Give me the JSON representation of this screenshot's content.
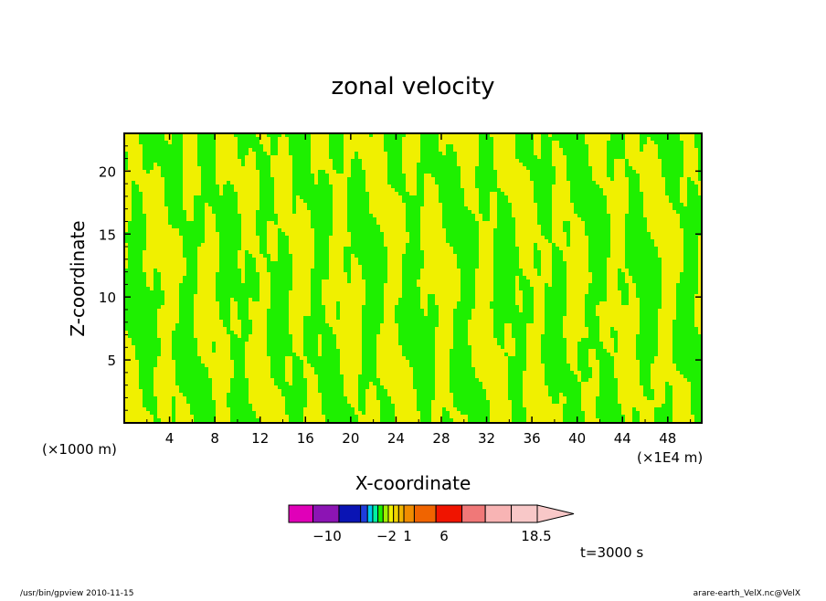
{
  "chart_data": {
    "type": "heatmap",
    "title": "zonal velocity",
    "xlabel": "X-coordinate",
    "ylabel": "Z-coordinate",
    "x_units": "(×1E4 m)",
    "y_units": "(×1000 m)",
    "xlim": [
      0,
      51
    ],
    "ylim": [
      0,
      23
    ],
    "x_ticks": [
      "4",
      "8",
      "12",
      "16",
      "20",
      "24",
      "28",
      "32",
      "36",
      "40",
      "44",
      "48"
    ],
    "y_ticks": [
      "5",
      "10",
      "15",
      "20"
    ],
    "time_label": "t=3000 s",
    "colorbar": {
      "levels": [
        -14,
        -12,
        -10,
        -8,
        -6,
        -5,
        -4,
        -3,
        -2,
        -1,
        0,
        1,
        2,
        3,
        4,
        6,
        8,
        10,
        12,
        14,
        18.5
      ],
      "colors": [
        "#e000b8",
        "#8c14b4",
        "#0a14b4",
        "#1450e6",
        "#00c8f0",
        "#00f0a0",
        "#1ef000",
        "#a0f000",
        "#f0f000",
        "#f0d200",
        "#f0aa00",
        "#f0aa00",
        "#f08c00",
        "#f06400",
        "#f01400",
        "#f01400",
        "#f07878",
        "#f07878",
        "#f8b4b4",
        "#f8b4b4"
      ],
      "shown_colors": [
        "#e000b8",
        "#8c14b4",
        "#0a14b4",
        "#1e3cdc",
        "#00c8f0",
        "#00f0a0",
        "#1ef000",
        "#a0f000",
        "#f0f000",
        "#f0d200",
        "#f0b400",
        "#f08c00",
        "#f06400",
        "#f01400",
        "#f07878",
        "#f8b4b4",
        "#f8c8c8"
      ],
      "tick_labels": [
        "-10",
        "-2",
        "1",
        "6",
        "18.5"
      ],
      "tick_positions_values": [
        -10,
        -2,
        1,
        6,
        18.5
      ]
    },
    "field_colors": {
      "positive": "#f0f000",
      "negative": "#1ef000"
    }
  },
  "footer": {
    "left": "/usr/bin/gpview   2010-11-15",
    "right": "arare-earth_VelX.nc@VelX"
  }
}
